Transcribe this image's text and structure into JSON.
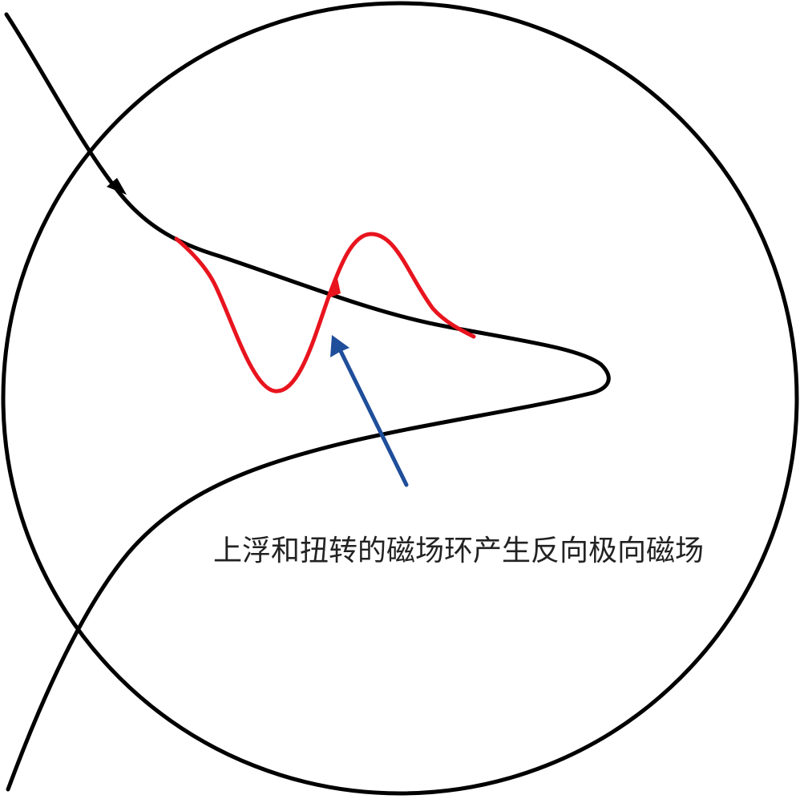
{
  "caption": "上浮和扭转的磁场环产生反向极向磁场",
  "colors": {
    "field_line": "#000000",
    "twisted_loop": "#e8141e",
    "pointer_arrow": "#1f4e9a",
    "caption_text": "#222222",
    "background": "#ffffff"
  },
  "icons": {
    "field_direction_arrow": "arrowhead-icon",
    "loop_direction_arrow": "arrowhead-icon",
    "pointer_arrow": "arrow-icon"
  }
}
